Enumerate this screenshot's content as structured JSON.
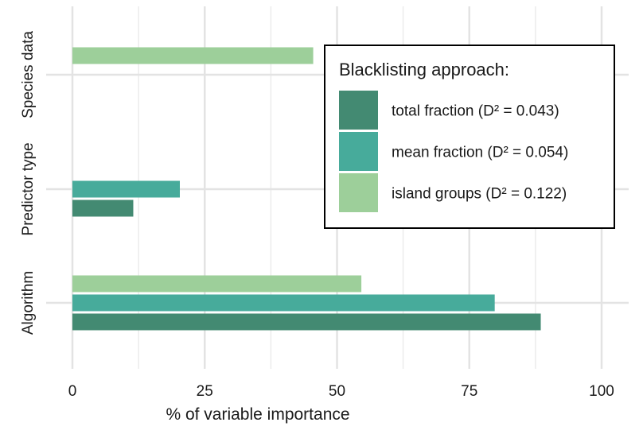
{
  "chart_data": {
    "type": "bar",
    "orientation": "horizontal",
    "xlabel": "% of variable importance",
    "ylabel": "",
    "xlim": [
      0,
      100
    ],
    "x_ticks": [
      0,
      25,
      50,
      75,
      100
    ],
    "categories": [
      "Species data",
      "Predictor type",
      "Algorithm"
    ],
    "series": [
      {
        "name": "total fraction (D² = 0.043)",
        "color": "#438a72",
        "values": [
          0,
          11.5,
          88.5
        ]
      },
      {
        "name": "mean fraction (D² = 0.054)",
        "color": "#47ab9b",
        "values": [
          0,
          20.3,
          79.8
        ]
      },
      {
        "name": "island groups (D² = 0.122)",
        "color": "#9dcf9a",
        "values": [
          45.5,
          0,
          54.6
        ]
      }
    ],
    "grid": true,
    "legend": {
      "title": "Blacklisting approach:",
      "placement": "top-right"
    }
  }
}
